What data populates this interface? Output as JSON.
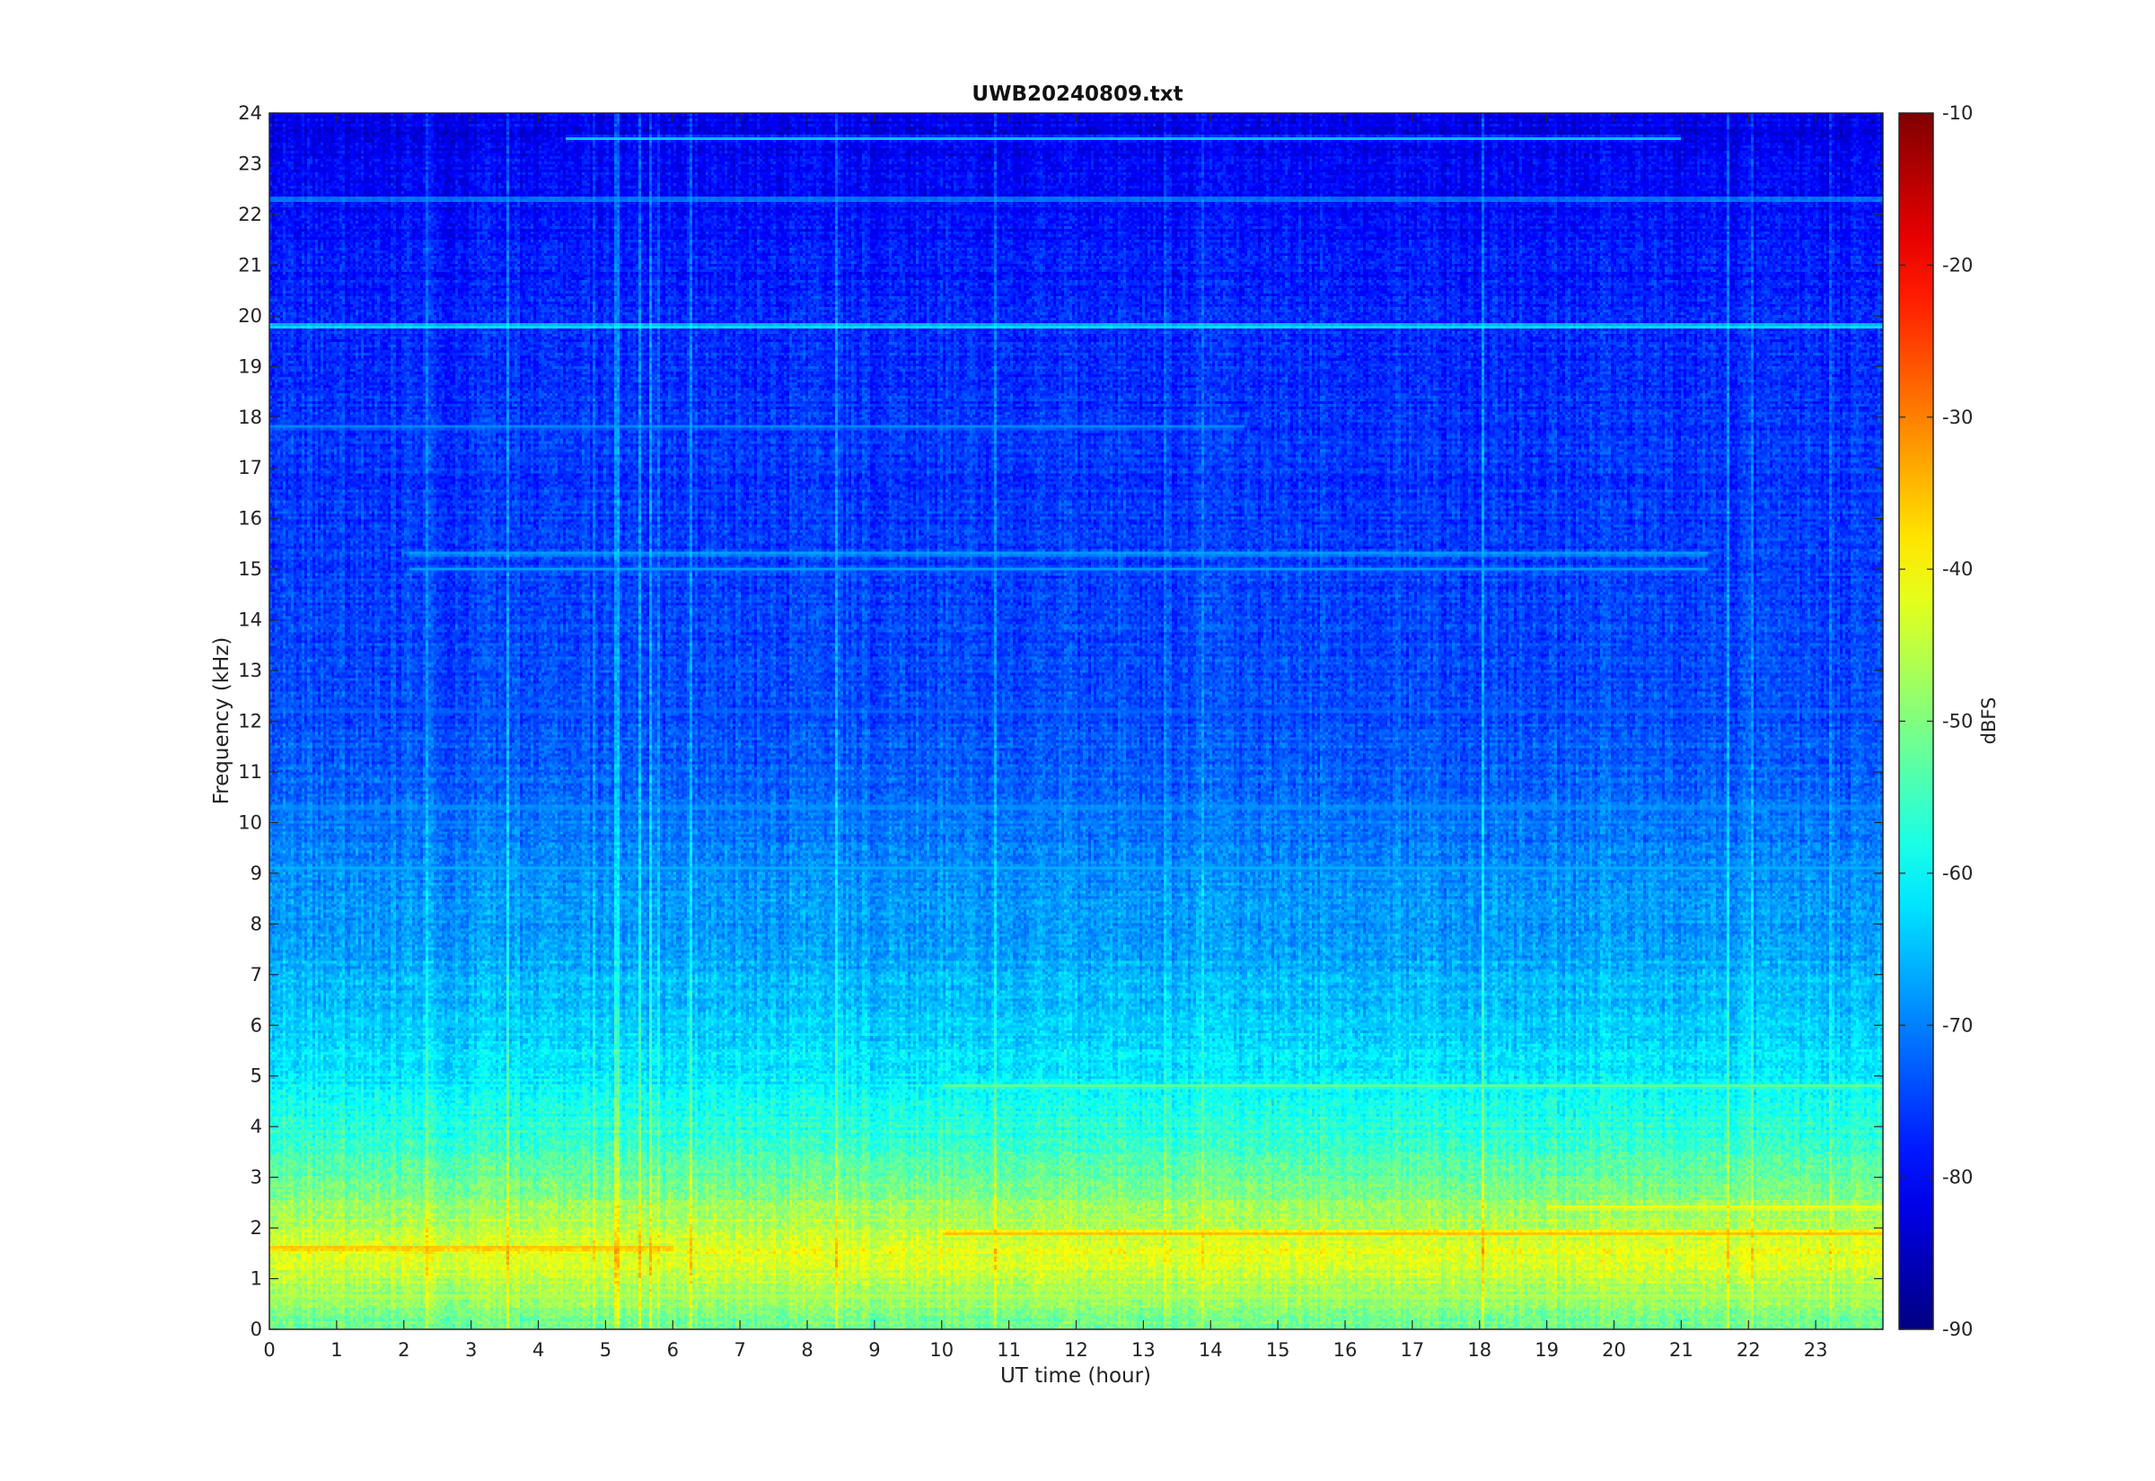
{
  "chart_data": {
    "type": "heatmap",
    "title": "UWB20240809.txt",
    "xlabel": "UT time (hour)",
    "ylabel": "Frequency (kHz)",
    "xlim": [
      0,
      24
    ],
    "ylim": [
      0,
      24
    ],
    "x_ticks": [
      "0",
      "1",
      "2",
      "3",
      "4",
      "5",
      "6",
      "7",
      "8",
      "9",
      "10",
      "11",
      "12",
      "13",
      "14",
      "15",
      "16",
      "17",
      "18",
      "19",
      "20",
      "21",
      "22",
      "23"
    ],
    "y_ticks": [
      "0",
      "1",
      "2",
      "3",
      "4",
      "5",
      "6",
      "7",
      "8",
      "9",
      "10",
      "11",
      "12",
      "13",
      "14",
      "15",
      "16",
      "17",
      "18",
      "19",
      "20",
      "21",
      "22",
      "23",
      "24"
    ],
    "colorbar": {
      "label": "dBFS",
      "colormap": "jet",
      "range": [
        -90,
        -10
      ],
      "ticks": [
        "-90",
        "-80",
        "-70",
        "-60",
        "-50",
        "-40",
        "-30",
        "-20",
        "-10"
      ]
    },
    "grid": false,
    "features": {
      "steady_lines_khz": [
        {
          "freq": 19.8,
          "level_dbfs": -57,
          "from_hour": 0,
          "to_hour": 24
        },
        {
          "freq": 23.5,
          "level_dbfs": -64,
          "from_hour": 4.4,
          "to_hour": 21
        },
        {
          "freq": 22.3,
          "level_dbfs": -66,
          "from_hour": 0,
          "to_hour": 24
        },
        {
          "freq": 17.8,
          "level_dbfs": -68,
          "from_hour": 0,
          "to_hour": 14.5
        },
        {
          "freq": 15.3,
          "level_dbfs": -66,
          "from_hour": 2.1,
          "to_hour": 21.4
        },
        {
          "freq": 15.0,
          "level_dbfs": -68,
          "from_hour": 2.1,
          "to_hour": 21.4
        },
        {
          "freq": 12.2,
          "level_dbfs": -72,
          "from_hour": 0,
          "to_hour": 24
        },
        {
          "freq": 10.3,
          "level_dbfs": -68,
          "from_hour": 0,
          "to_hour": 24
        },
        {
          "freq": 10.0,
          "level_dbfs": -70,
          "from_hour": 0,
          "to_hour": 24
        },
        {
          "freq": 9.1,
          "level_dbfs": -66,
          "from_hour": 0,
          "to_hour": 24
        },
        {
          "freq": 6.0,
          "level_dbfs": -64,
          "from_hour": 0,
          "to_hour": 24
        },
        {
          "freq": 4.8,
          "level_dbfs": -52,
          "from_hour": 10,
          "to_hour": 24
        },
        {
          "freq": 2.4,
          "level_dbfs": -40,
          "from_hour": 19,
          "to_hour": 24
        },
        {
          "freq": 1.9,
          "level_dbfs": -33,
          "from_hour": 10,
          "to_hour": 24
        },
        {
          "freq": 1.6,
          "level_dbfs": -33,
          "from_hour": 0,
          "to_hour": 6
        },
        {
          "freq": 0.65,
          "level_dbfs": -45,
          "from_hour": 0,
          "to_hour": 24
        }
      ],
      "background_profile_dbfs": [
        {
          "freq": 0,
          "level": -52
        },
        {
          "freq": 1.5,
          "level": -42
        },
        {
          "freq": 3,
          "level": -52
        },
        {
          "freq": 5,
          "level": -62
        },
        {
          "freq": 8,
          "level": -68
        },
        {
          "freq": 12,
          "level": -74
        },
        {
          "freq": 20,
          "level": -77
        },
        {
          "freq": 24,
          "level": -82
        }
      ]
    }
  }
}
